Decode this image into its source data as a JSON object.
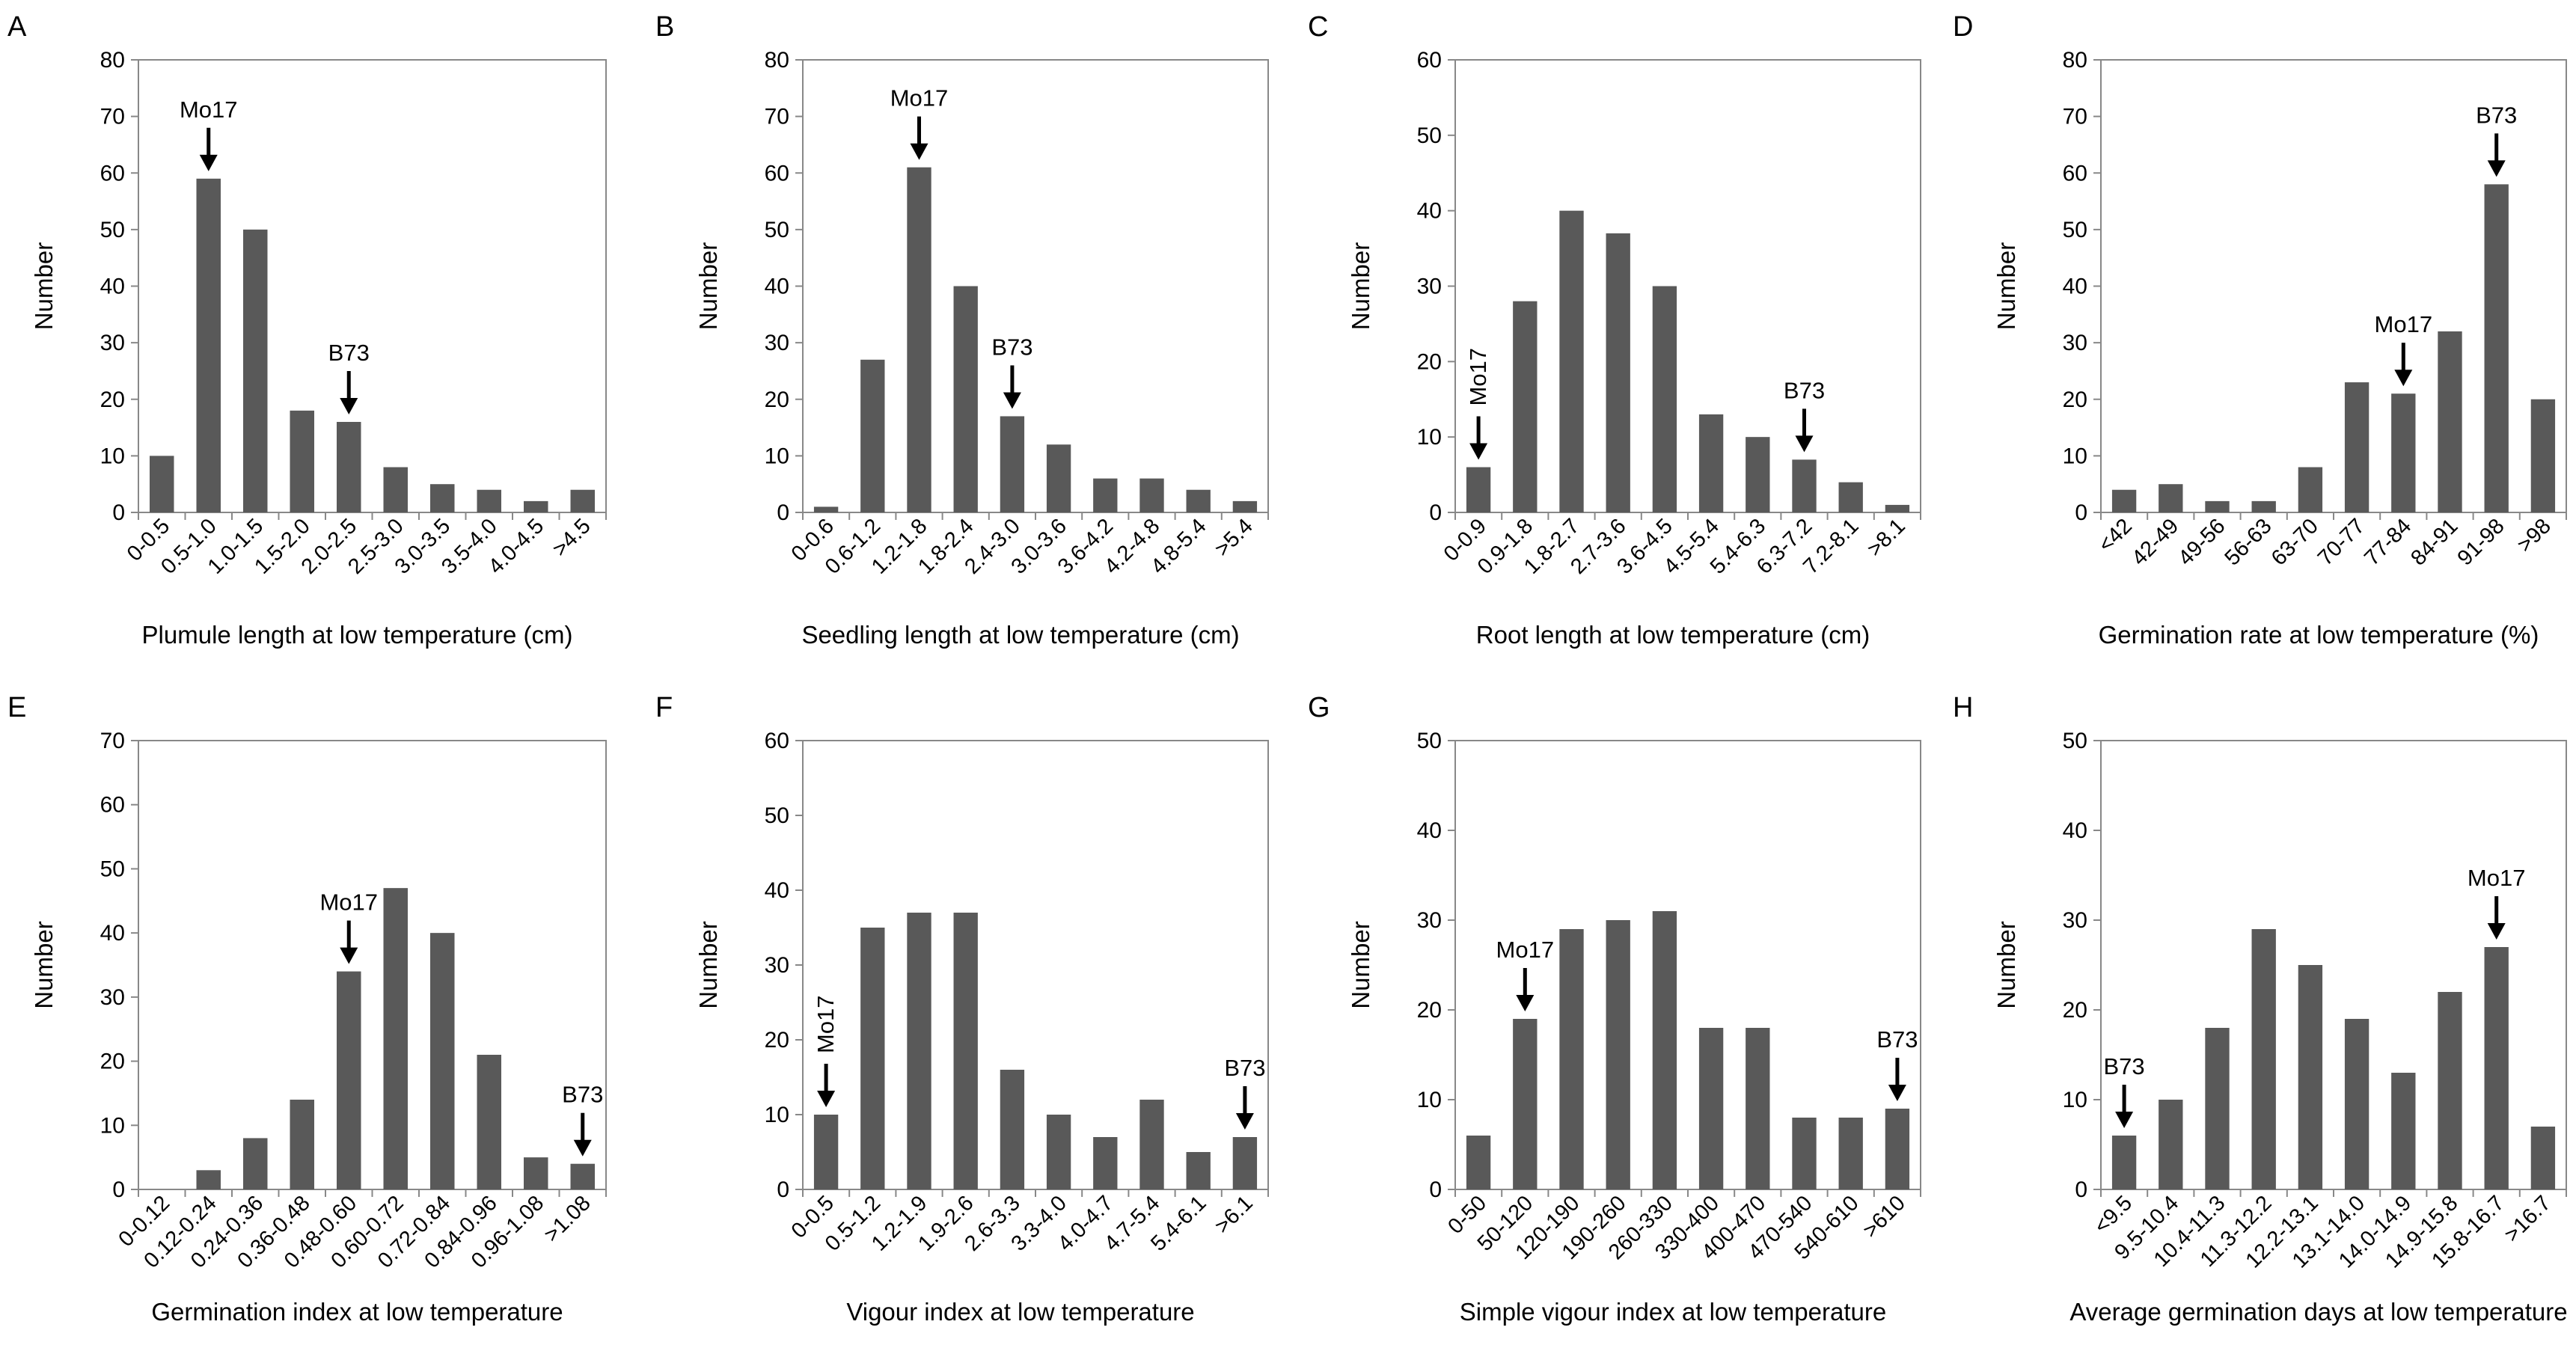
{
  "chart_data": [
    {
      "type": "bar",
      "panel_label": "A",
      "title": "",
      "xlabel": "Plumule length at low temperature (cm)",
      "ylabel": "Number",
      "ylim": [
        0,
        80
      ],
      "yticks": [
        0,
        10,
        20,
        30,
        40,
        50,
        60,
        70,
        80
      ],
      "categories": [
        "0-0.5",
        "0.5-1.0",
        "1.0-1.5",
        "1.5-2.0",
        "2.0-2.5",
        "2.5-3.0",
        "3.0-3.5",
        "3.5-4.0",
        "4.0-4.5",
        ">4.5"
      ],
      "values": [
        10,
        59,
        50,
        18,
        16,
        8,
        5,
        4,
        2,
        4
      ],
      "annotations": [
        {
          "label": "Mo17",
          "category_index": 1,
          "rotated": false
        },
        {
          "label": "B73",
          "category_index": 4,
          "rotated": false
        }
      ]
    },
    {
      "type": "bar",
      "panel_label": "B",
      "title": "",
      "xlabel": "Seedling length at low temperature (cm)",
      "ylabel": "Number",
      "ylim": [
        0,
        80
      ],
      "yticks": [
        0,
        10,
        20,
        30,
        40,
        50,
        60,
        70,
        80
      ],
      "categories": [
        "0-0.6",
        "0.6-1.2",
        "1.2-1.8",
        "1.8-2.4",
        "2.4-3.0",
        "3.0-3.6",
        "3.6-4.2",
        "4.2-4.8",
        "4.8-5.4",
        ">5.4"
      ],
      "values": [
        1,
        27,
        61,
        40,
        17,
        12,
        6,
        6,
        4,
        2
      ],
      "annotations": [
        {
          "label": "Mo17",
          "category_index": 2,
          "rotated": false
        },
        {
          "label": "B73",
          "category_index": 4,
          "rotated": false
        }
      ]
    },
    {
      "type": "bar",
      "panel_label": "C",
      "title": "",
      "xlabel": "Root length at low temperature (cm)",
      "ylabel": "Number",
      "ylim": [
        0,
        60
      ],
      "yticks": [
        0,
        10,
        20,
        30,
        40,
        50,
        60
      ],
      "categories": [
        "0-0.9",
        "0.9-1.8",
        "1.8-2.7",
        "2.7-3.6",
        "3.6-4.5",
        "4.5-5.4",
        "5.4-6.3",
        "6.3-7.2",
        "7.2-8.1",
        ">8.1"
      ],
      "values": [
        6,
        28,
        40,
        37,
        30,
        13,
        10,
        7,
        4,
        1
      ],
      "annotations": [
        {
          "label": "Mo17",
          "category_index": 0,
          "rotated": true
        },
        {
          "label": "B73",
          "category_index": 7,
          "rotated": false
        }
      ]
    },
    {
      "type": "bar",
      "panel_label": "D",
      "title": "",
      "xlabel": "Germination rate at low temperature (%)",
      "ylabel": "Number",
      "ylim": [
        0,
        80
      ],
      "yticks": [
        0,
        10,
        20,
        30,
        40,
        50,
        60,
        70,
        80
      ],
      "categories": [
        "<42",
        "42-49",
        "49-56",
        "56-63",
        "63-70",
        "70-77",
        "77-84",
        "84-91",
        "91-98",
        ">98"
      ],
      "values": [
        4,
        5,
        2,
        2,
        8,
        23,
        21,
        32,
        58,
        20
      ],
      "annotations": [
        {
          "label": "Mo17",
          "category_index": 6,
          "rotated": false
        },
        {
          "label": "B73",
          "category_index": 8,
          "rotated": false
        }
      ]
    },
    {
      "type": "bar",
      "panel_label": "E",
      "title": "",
      "xlabel": "Germination index at low temperature",
      "ylabel": "Number",
      "ylim": [
        0,
        70
      ],
      "yticks": [
        0,
        10,
        20,
        30,
        40,
        50,
        60,
        70
      ],
      "categories": [
        "0-0.12",
        "0.12-0.24",
        "0.24-0.36",
        "0.36-0.48",
        "0.48-0.60",
        "0.60-0.72",
        "0.72-0.84",
        "0.84-0.96",
        "0.96-1.08",
        ">1.08"
      ],
      "values": [
        0,
        3,
        8,
        14,
        34,
        47,
        40,
        21,
        5,
        4
      ],
      "annotations": [
        {
          "label": "Mo17",
          "category_index": 4,
          "rotated": false
        },
        {
          "label": "B73",
          "category_index": 9,
          "rotated": false
        }
      ]
    },
    {
      "type": "bar",
      "panel_label": "F",
      "title": "",
      "xlabel": "Vigour index at low temperature",
      "ylabel": "Number",
      "ylim": [
        0,
        60
      ],
      "yticks": [
        0,
        10,
        20,
        30,
        40,
        50,
        60
      ],
      "categories": [
        "0-0.5",
        "0.5-1.2",
        "1.2-1.9",
        "1.9-2.6",
        "2.6-3.3",
        "3.3-4.0",
        "4.0-4.7",
        "4.7-5.4",
        "5.4-6.1",
        ">6.1"
      ],
      "values": [
        10,
        35,
        37,
        37,
        16,
        10,
        7,
        12,
        5,
        7
      ],
      "annotations": [
        {
          "label": "Mo17",
          "category_index": 0,
          "rotated": true
        },
        {
          "label": "B73",
          "category_index": 9,
          "rotated": false
        }
      ]
    },
    {
      "type": "bar",
      "panel_label": "G",
      "title": "",
      "xlabel": "Simple vigour index at low temperature",
      "ylabel": "Number",
      "ylim": [
        0,
        50
      ],
      "yticks": [
        0,
        10,
        20,
        30,
        40,
        50
      ],
      "categories": [
        "0-50",
        "50-120",
        "120-190",
        "190-260",
        "260-330",
        "330-400",
        "400-470",
        "470-540",
        "540-610",
        ">610"
      ],
      "values": [
        6,
        19,
        29,
        30,
        31,
        18,
        18,
        8,
        8,
        9
      ],
      "annotations": [
        {
          "label": "Mo17",
          "category_index": 1,
          "rotated": false
        },
        {
          "label": "B73",
          "category_index": 9,
          "rotated": false
        }
      ]
    },
    {
      "type": "bar",
      "panel_label": "H",
      "title": "",
      "xlabel": "Average germination days at low temperature",
      "ylabel": "Number",
      "ylim": [
        0,
        50
      ],
      "yticks": [
        0,
        10,
        20,
        30,
        40,
        50
      ],
      "categories": [
        "<9.5",
        "9.5-10.4",
        "10.4-11.3",
        "11.3-12.2",
        "12.2-13.1",
        "13.1-14.0",
        "14.0-14.9",
        "14.9-15.8",
        "15.8-16.7",
        ">16.7"
      ],
      "values": [
        6,
        10,
        18,
        29,
        25,
        19,
        13,
        22,
        27,
        7
      ],
      "annotations": [
        {
          "label": "B73",
          "category_index": 0,
          "rotated": false
        },
        {
          "label": "Mo17",
          "category_index": 8,
          "rotated": false
        }
      ]
    }
  ]
}
